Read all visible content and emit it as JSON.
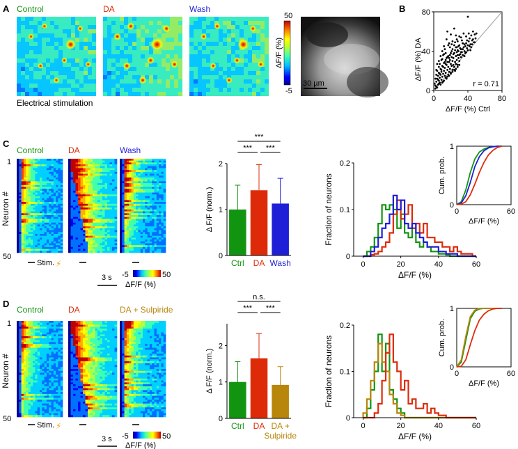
{
  "colors": {
    "control": "#119511",
    "da": "#dd2b0a",
    "wash": "#1f1fd8",
    "sulpiride": "#b8860b",
    "axis": "#000000"
  },
  "colormap": [
    "#00008f",
    "#0000ff",
    "#0070ff",
    "#00d0ff",
    "#40ffb0",
    "#b0ff40",
    "#ffff00",
    "#ffb000",
    "#ff4000",
    "#c00000"
  ],
  "panel_a": {
    "letter": "A",
    "labels": [
      "Control",
      "DA",
      "Wash"
    ],
    "caption": "Electrical stimulation",
    "cbar_max": "50",
    "cbar_min": "-5",
    "cbar_label": "ΔF/F (%)",
    "scalebar": "30 µm"
  },
  "panel_c": {
    "letter": "C",
    "labels": [
      "Control",
      "DA",
      "Wash"
    ],
    "neuron_axis": "Neuron #",
    "neuron_top": "1",
    "neuron_bottom": "50",
    "stim": "Stim.",
    "time_bar": "3 s",
    "cbar_min": "-5",
    "cbar_max": "50",
    "cbar_label": "ΔF/F (%)"
  },
  "panel_d": {
    "letter": "D",
    "labels": [
      "Control",
      "DA",
      "DA + Sulpiride"
    ],
    "neuron_axis": "Neuron #",
    "neuron_top": "1",
    "neuron_bottom": "50",
    "stim": "Stim.",
    "time_bar": "3 s",
    "cbar_min": "-5",
    "cbar_max": "50",
    "cbar_label": "ΔF/F (%)"
  },
  "chart_data": [
    {
      "id": "b_scatter",
      "panel": "B",
      "type": "scatter",
      "xlabel": "ΔF/F (%) Ctrl",
      "ylabel": "ΔF/F (%) DA",
      "xlim": [
        0,
        80
      ],
      "ylim": [
        0,
        80
      ],
      "xticks": [
        0,
        40,
        80
      ],
      "yticks": [
        0,
        40,
        80
      ],
      "annotation": "r = 0.71",
      "unity_line": true,
      "points": [
        [
          2,
          5
        ],
        [
          3,
          9
        ],
        [
          4,
          12
        ],
        [
          5,
          6
        ],
        [
          5,
          15
        ],
        [
          6,
          10
        ],
        [
          6,
          18
        ],
        [
          7,
          8
        ],
        [
          7,
          13
        ],
        [
          8,
          16
        ],
        [
          8,
          22
        ],
        [
          9,
          11
        ],
        [
          9,
          19
        ],
        [
          10,
          14
        ],
        [
          10,
          25
        ],
        [
          11,
          17
        ],
        [
          11,
          9
        ],
        [
          12,
          20
        ],
        [
          12,
          28
        ],
        [
          13,
          15
        ],
        [
          13,
          23
        ],
        [
          14,
          18
        ],
        [
          14,
          31
        ],
        [
          15,
          12
        ],
        [
          15,
          26
        ],
        [
          16,
          21
        ],
        [
          16,
          34
        ],
        [
          17,
          16
        ],
        [
          17,
          24
        ],
        [
          18,
          29
        ],
        [
          18,
          19
        ],
        [
          19,
          22
        ],
        [
          19,
          36
        ],
        [
          20,
          27
        ],
        [
          20,
          17
        ],
        [
          21,
          25
        ],
        [
          21,
          40
        ],
        [
          22,
          21
        ],
        [
          22,
          30
        ],
        [
          23,
          33
        ],
        [
          23,
          26
        ],
        [
          24,
          24
        ],
        [
          24,
          38
        ],
        [
          25,
          29
        ],
        [
          25,
          20
        ],
        [
          26,
          35
        ],
        [
          26,
          27
        ],
        [
          27,
          31
        ],
        [
          27,
          44
        ],
        [
          28,
          26
        ],
        [
          28,
          36
        ],
        [
          29,
          33
        ],
        [
          29,
          40
        ],
        [
          30,
          30
        ],
        [
          30,
          46
        ],
        [
          31,
          37
        ],
        [
          32,
          34
        ],
        [
          32,
          42
        ],
        [
          33,
          39
        ],
        [
          34,
          36
        ],
        [
          35,
          44
        ],
        [
          36,
          40
        ],
        [
          37,
          38
        ],
        [
          38,
          48
        ],
        [
          39,
          43
        ],
        [
          40,
          41
        ],
        [
          41,
          50
        ],
        [
          42,
          45
        ],
        [
          43,
          47
        ],
        [
          44,
          44
        ],
        [
          45,
          51
        ],
        [
          47,
          49
        ],
        [
          49,
          53
        ],
        [
          10,
          40
        ],
        [
          12,
          45
        ],
        [
          15,
          52
        ],
        [
          18,
          48
        ],
        [
          20,
          57
        ],
        [
          22,
          50
        ],
        [
          16,
          60
        ],
        [
          26,
          56
        ],
        [
          24,
          63
        ],
        [
          32,
          54
        ],
        [
          40,
          75
        ],
        [
          14,
          38
        ],
        [
          9,
          31
        ],
        [
          7,
          27
        ],
        [
          6,
          24
        ],
        [
          19,
          44
        ],
        [
          28,
          50
        ],
        [
          35,
          58
        ],
        [
          30,
          55
        ],
        [
          4,
          20
        ],
        [
          3,
          16
        ],
        [
          11,
          36
        ],
        [
          13,
          42
        ],
        [
          17,
          46
        ],
        [
          21,
          47
        ],
        [
          25,
          49
        ],
        [
          27,
          52
        ],
        [
          33,
          51
        ],
        [
          36,
          47
        ],
        [
          38,
          55
        ],
        [
          41,
          58
        ],
        [
          44,
          56
        ],
        [
          46,
          60
        ],
        [
          48,
          57
        ],
        [
          2,
          2
        ],
        [
          3,
          4
        ],
        [
          4,
          3
        ],
        [
          6,
          7
        ],
        [
          8,
          6
        ],
        [
          10,
          8
        ],
        [
          12,
          10
        ],
        [
          14,
          13
        ],
        [
          16,
          14
        ],
        [
          18,
          15
        ],
        [
          20,
          18
        ],
        [
          22,
          19
        ],
        [
          24,
          21
        ],
        [
          26,
          22
        ],
        [
          28,
          24
        ],
        [
          30,
          26
        ],
        [
          5,
          11
        ],
        [
          7,
          17
        ],
        [
          9,
          21
        ],
        [
          11,
          24
        ],
        [
          13,
          29
        ],
        [
          15,
          33
        ],
        [
          17,
          35
        ],
        [
          19,
          31
        ],
        [
          21,
          34
        ],
        [
          23,
          37
        ],
        [
          25,
          41
        ],
        [
          27,
          39
        ],
        [
          29,
          45
        ],
        [
          31,
          43
        ],
        [
          34,
          48
        ],
        [
          37,
          45
        ],
        [
          39,
          51
        ],
        [
          42,
          53
        ],
        [
          45,
          47
        ],
        [
          1,
          7
        ],
        [
          2,
          12
        ],
        [
          3,
          21
        ],
        [
          4,
          27
        ],
        [
          6,
          30
        ],
        [
          8,
          35
        ],
        [
          10,
          32
        ],
        [
          12,
          37
        ],
        [
          14,
          27
        ],
        [
          16,
          29
        ],
        [
          18,
          33
        ],
        [
          20,
          38
        ],
        [
          22,
          42
        ],
        [
          24,
          46
        ],
        [
          26,
          44
        ],
        [
          28,
          41
        ],
        [
          30,
          36
        ],
        [
          32,
          39
        ],
        [
          34,
          42
        ],
        [
          36,
          35
        ],
        [
          38,
          39
        ],
        [
          40,
          46
        ],
        [
          43,
          41
        ],
        [
          46,
          52
        ],
        [
          48,
          49
        ],
        [
          50,
          58
        ]
      ]
    },
    {
      "id": "c_bar",
      "panel": "C",
      "type": "bar",
      "categories": [
        "Ctrl",
        "DA",
        "Wash"
      ],
      "values": [
        1.0,
        1.42,
        1.13
      ],
      "errors": [
        0.53,
        0.56,
        0.55
      ],
      "bar_colors": [
        "#119511",
        "#dd2b0a",
        "#1f1fd8"
      ],
      "ylabel": "Δ F/F (norm.)",
      "ylim": [
        0,
        2
      ],
      "yticks": [
        0,
        1,
        2
      ],
      "significance": [
        {
          "from": 0,
          "to": 2,
          "label": "***"
        },
        {
          "from": 0,
          "to": 1,
          "label": "***"
        },
        {
          "from": 1,
          "to": 2,
          "label": "***"
        }
      ]
    },
    {
      "id": "c_hist",
      "panel": "C",
      "type": "line",
      "ylabel": "Fraction of neurons",
      "xlabel": "ΔF/F (%)",
      "xlim": [
        -5,
        60
      ],
      "ylim": [
        0,
        0.2
      ],
      "xticks": [
        0,
        20,
        40,
        60
      ],
      "yticks": [
        0,
        0.1,
        0.2
      ],
      "bin_start": 0,
      "bin_width": 2,
      "series": [
        {
          "name": "Ctrl",
          "color": "#119511",
          "values": [
            0,
            0.01,
            0.02,
            0.04,
            0.07,
            0.11,
            0.1,
            0.11,
            0.1,
            0.06,
            0.09,
            0.05,
            0.04,
            0.06,
            0.03,
            0.02,
            0.03,
            0.02,
            0.01,
            0.01,
            0.005,
            0.005,
            0.003,
            0,
            0,
            0,
            0,
            0,
            0,
            0
          ]
        },
        {
          "name": "DA",
          "color": "#dd2b0a",
          "values": [
            0,
            0,
            0.003,
            0.005,
            0.01,
            0.02,
            0.03,
            0.05,
            0.09,
            0.12,
            0.08,
            0.09,
            0.11,
            0.06,
            0.07,
            0.05,
            0.07,
            0.04,
            0.04,
            0.03,
            0.03,
            0.02,
            0.02,
            0.01,
            0.02,
            0.01,
            0.005,
            0.005,
            0.005,
            0
          ]
        },
        {
          "name": "Wash",
          "color": "#1f1fd8",
          "values": [
            0,
            0,
            0.01,
            0.02,
            0.04,
            0.06,
            0.07,
            0.09,
            0.13,
            0.1,
            0.12,
            0.07,
            0.06,
            0.07,
            0.05,
            0.04,
            0.03,
            0.02,
            0.02,
            0.02,
            0.01,
            0.01,
            0.005,
            0.005,
            0.005,
            0,
            0,
            0,
            0,
            0
          ]
        }
      ],
      "inset": {
        "type": "line",
        "ylabel": "Cum. prob.",
        "xlabel": "ΔF/F (%)",
        "xlim": [
          0,
          60
        ],
        "ylim": [
          0,
          1
        ],
        "xticks": [
          0,
          60
        ],
        "yticks": [
          0,
          1
        ],
        "x": [
          0,
          5,
          10,
          15,
          20,
          25,
          30,
          35,
          40,
          45,
          50
        ],
        "series": [
          {
            "name": "Ctrl",
            "color": "#119511",
            "values": [
              0,
              0.05,
              0.25,
              0.55,
              0.78,
              0.9,
              0.95,
              0.98,
              0.99,
              1,
              1
            ]
          },
          {
            "name": "Wash",
            "color": "#1f1fd8",
            "values": [
              0,
              0.03,
              0.15,
              0.38,
              0.65,
              0.82,
              0.92,
              0.97,
              0.99,
              1,
              1
            ]
          },
          {
            "name": "DA",
            "color": "#dd2b0a",
            "values": [
              0,
              0.01,
              0.05,
              0.17,
              0.35,
              0.55,
              0.72,
              0.85,
              0.93,
              0.98,
              1
            ]
          }
        ]
      }
    },
    {
      "id": "d_bar",
      "panel": "D",
      "type": "bar",
      "categories": [
        "Ctrl",
        "DA",
        "DA +\nSulpiride"
      ],
      "values": [
        1.0,
        1.65,
        0.92
      ],
      "errors": [
        0.56,
        0.68,
        0.5
      ],
      "bar_colors": [
        "#119511",
        "#dd2b0a",
        "#b8860b"
      ],
      "ylabel": "Δ F/F (norm.)",
      "ylim": [
        0,
        2.6
      ],
      "yticks": [
        0,
        1,
        2
      ],
      "significance": [
        {
          "from": 0,
          "to": 2,
          "label": "n.s."
        },
        {
          "from": 0,
          "to": 1,
          "label": "***"
        },
        {
          "from": 1,
          "to": 2,
          "label": "***"
        }
      ]
    },
    {
      "id": "d_hist",
      "panel": "D",
      "type": "line",
      "ylabel": "Fraction of neurons",
      "xlabel": "ΔF/F (%)",
      "xlim": [
        -5,
        60
      ],
      "ylim": [
        0,
        0.2
      ],
      "xticks": [
        0,
        20,
        40,
        60
      ],
      "yticks": [
        0,
        0.1,
        0.2
      ],
      "bin_start": 0,
      "bin_width": 2,
      "series": [
        {
          "name": "Ctrl",
          "color": "#119511",
          "values": [
            0,
            0.02,
            0.06,
            0.1,
            0.18,
            0.1,
            0.16,
            0.06,
            0.04,
            0.02,
            0.01,
            0,
            0,
            0,
            0,
            0,
            0,
            0,
            0,
            0,
            0,
            0,
            0,
            0,
            0,
            0,
            0,
            0,
            0,
            0
          ]
        },
        {
          "name": "DA + Sulpiride",
          "color": "#b8860b",
          "values": [
            0.01,
            0.04,
            0.08,
            0.12,
            0.16,
            0.12,
            0.1,
            0.05,
            0.03,
            0.01,
            0.005,
            0,
            0,
            0,
            0,
            0,
            0,
            0,
            0,
            0,
            0,
            0,
            0,
            0,
            0,
            0,
            0,
            0,
            0,
            0
          ]
        },
        {
          "name": "DA",
          "color": "#dd2b0a",
          "values": [
            0,
            0,
            0,
            0.01,
            0.03,
            0.08,
            0.14,
            0.18,
            0.12,
            0.1,
            0.06,
            0.08,
            0.03,
            0.04,
            0.02,
            0.02,
            0.03,
            0.01,
            0.02,
            0.01,
            0.005,
            0.005,
            0,
            0,
            0,
            0,
            0,
            0,
            0,
            0
          ]
        }
      ],
      "inset": {
        "type": "line",
        "ylabel": "Cum. prob.",
        "xlabel": "ΔF/F (%)",
        "xlim": [
          0,
          60
        ],
        "ylim": [
          0,
          1
        ],
        "xticks": [
          0,
          60
        ],
        "yticks": [
          0,
          1
        ],
        "x": [
          0,
          5,
          10,
          15,
          20,
          25,
          30,
          35,
          40,
          45,
          50
        ],
        "series": [
          {
            "name": "Ctrl",
            "color": "#119511",
            "values": [
              0,
              0.08,
              0.45,
              0.82,
              0.95,
              0.99,
              1,
              1,
              1,
              1,
              1
            ]
          },
          {
            "name": "DA + Sulpiride",
            "color": "#b8860b",
            "values": [
              0,
              0.12,
              0.52,
              0.86,
              0.97,
              1,
              1,
              1,
              1,
              1,
              1
            ]
          },
          {
            "name": "DA",
            "color": "#dd2b0a",
            "values": [
              0,
              0.01,
              0.12,
              0.38,
              0.62,
              0.8,
              0.9,
              0.96,
              0.99,
              1,
              1
            ]
          }
        ]
      }
    }
  ]
}
